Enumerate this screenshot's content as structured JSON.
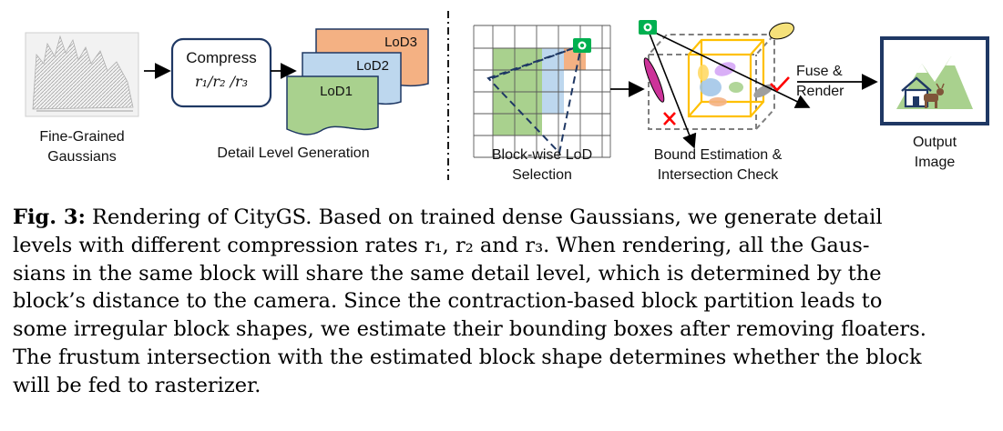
{
  "figure": {
    "labels": {
      "fine_grained": "Fine-Grained\nGaussians",
      "compress": "Compress",
      "rates": "r₁/r₂ /r₃",
      "detail_level_generation": "Detail Level Generation",
      "lod1": "LoD1",
      "lod2": "LoD2",
      "lod3": "LoD3",
      "block_lod_selection": "Block-wise LoD\nSelection",
      "bound_estimation": "Bound Estimation &\nIntersection Check",
      "fuse_render": "Fuse &\nRender",
      "output_image": "Output\nImage"
    },
    "colors": {
      "lod1": "#a9d18e",
      "lod2": "#bdd7ee",
      "lod3": "#f4b183",
      "green_block": "#a9d18e",
      "blue_block": "#bdd7ee",
      "orange_block": "#f4b183",
      "camera": "#00b050",
      "bbox": "#ffc000",
      "check": "#ff0000",
      "output_border": "#1f3864"
    },
    "icons": [
      "city-gaussians-icon",
      "camera-icon",
      "checkmark-icon",
      "cross-icon",
      "house-icon",
      "goat-icon",
      "mountain-icon"
    ]
  },
  "caption": {
    "label": "Fig. 3:",
    "lines": [
      " Rendering of CityGS. Based on trained dense Gaussians, we generate detail",
      "levels with different compression rates r₁, r₂ and r₃. When rendering, all the Gaus-",
      "sians in the same block will share the same detail level, which is determined by the",
      "block’s distance to the camera. Since the contraction-based block partition leads to",
      "some irregular block shapes, we estimate their bounding boxes after removing floaters.",
      "The frustum intersection with the estimated block shape determines whether the block",
      "will be fed to rasterizer."
    ]
  }
}
